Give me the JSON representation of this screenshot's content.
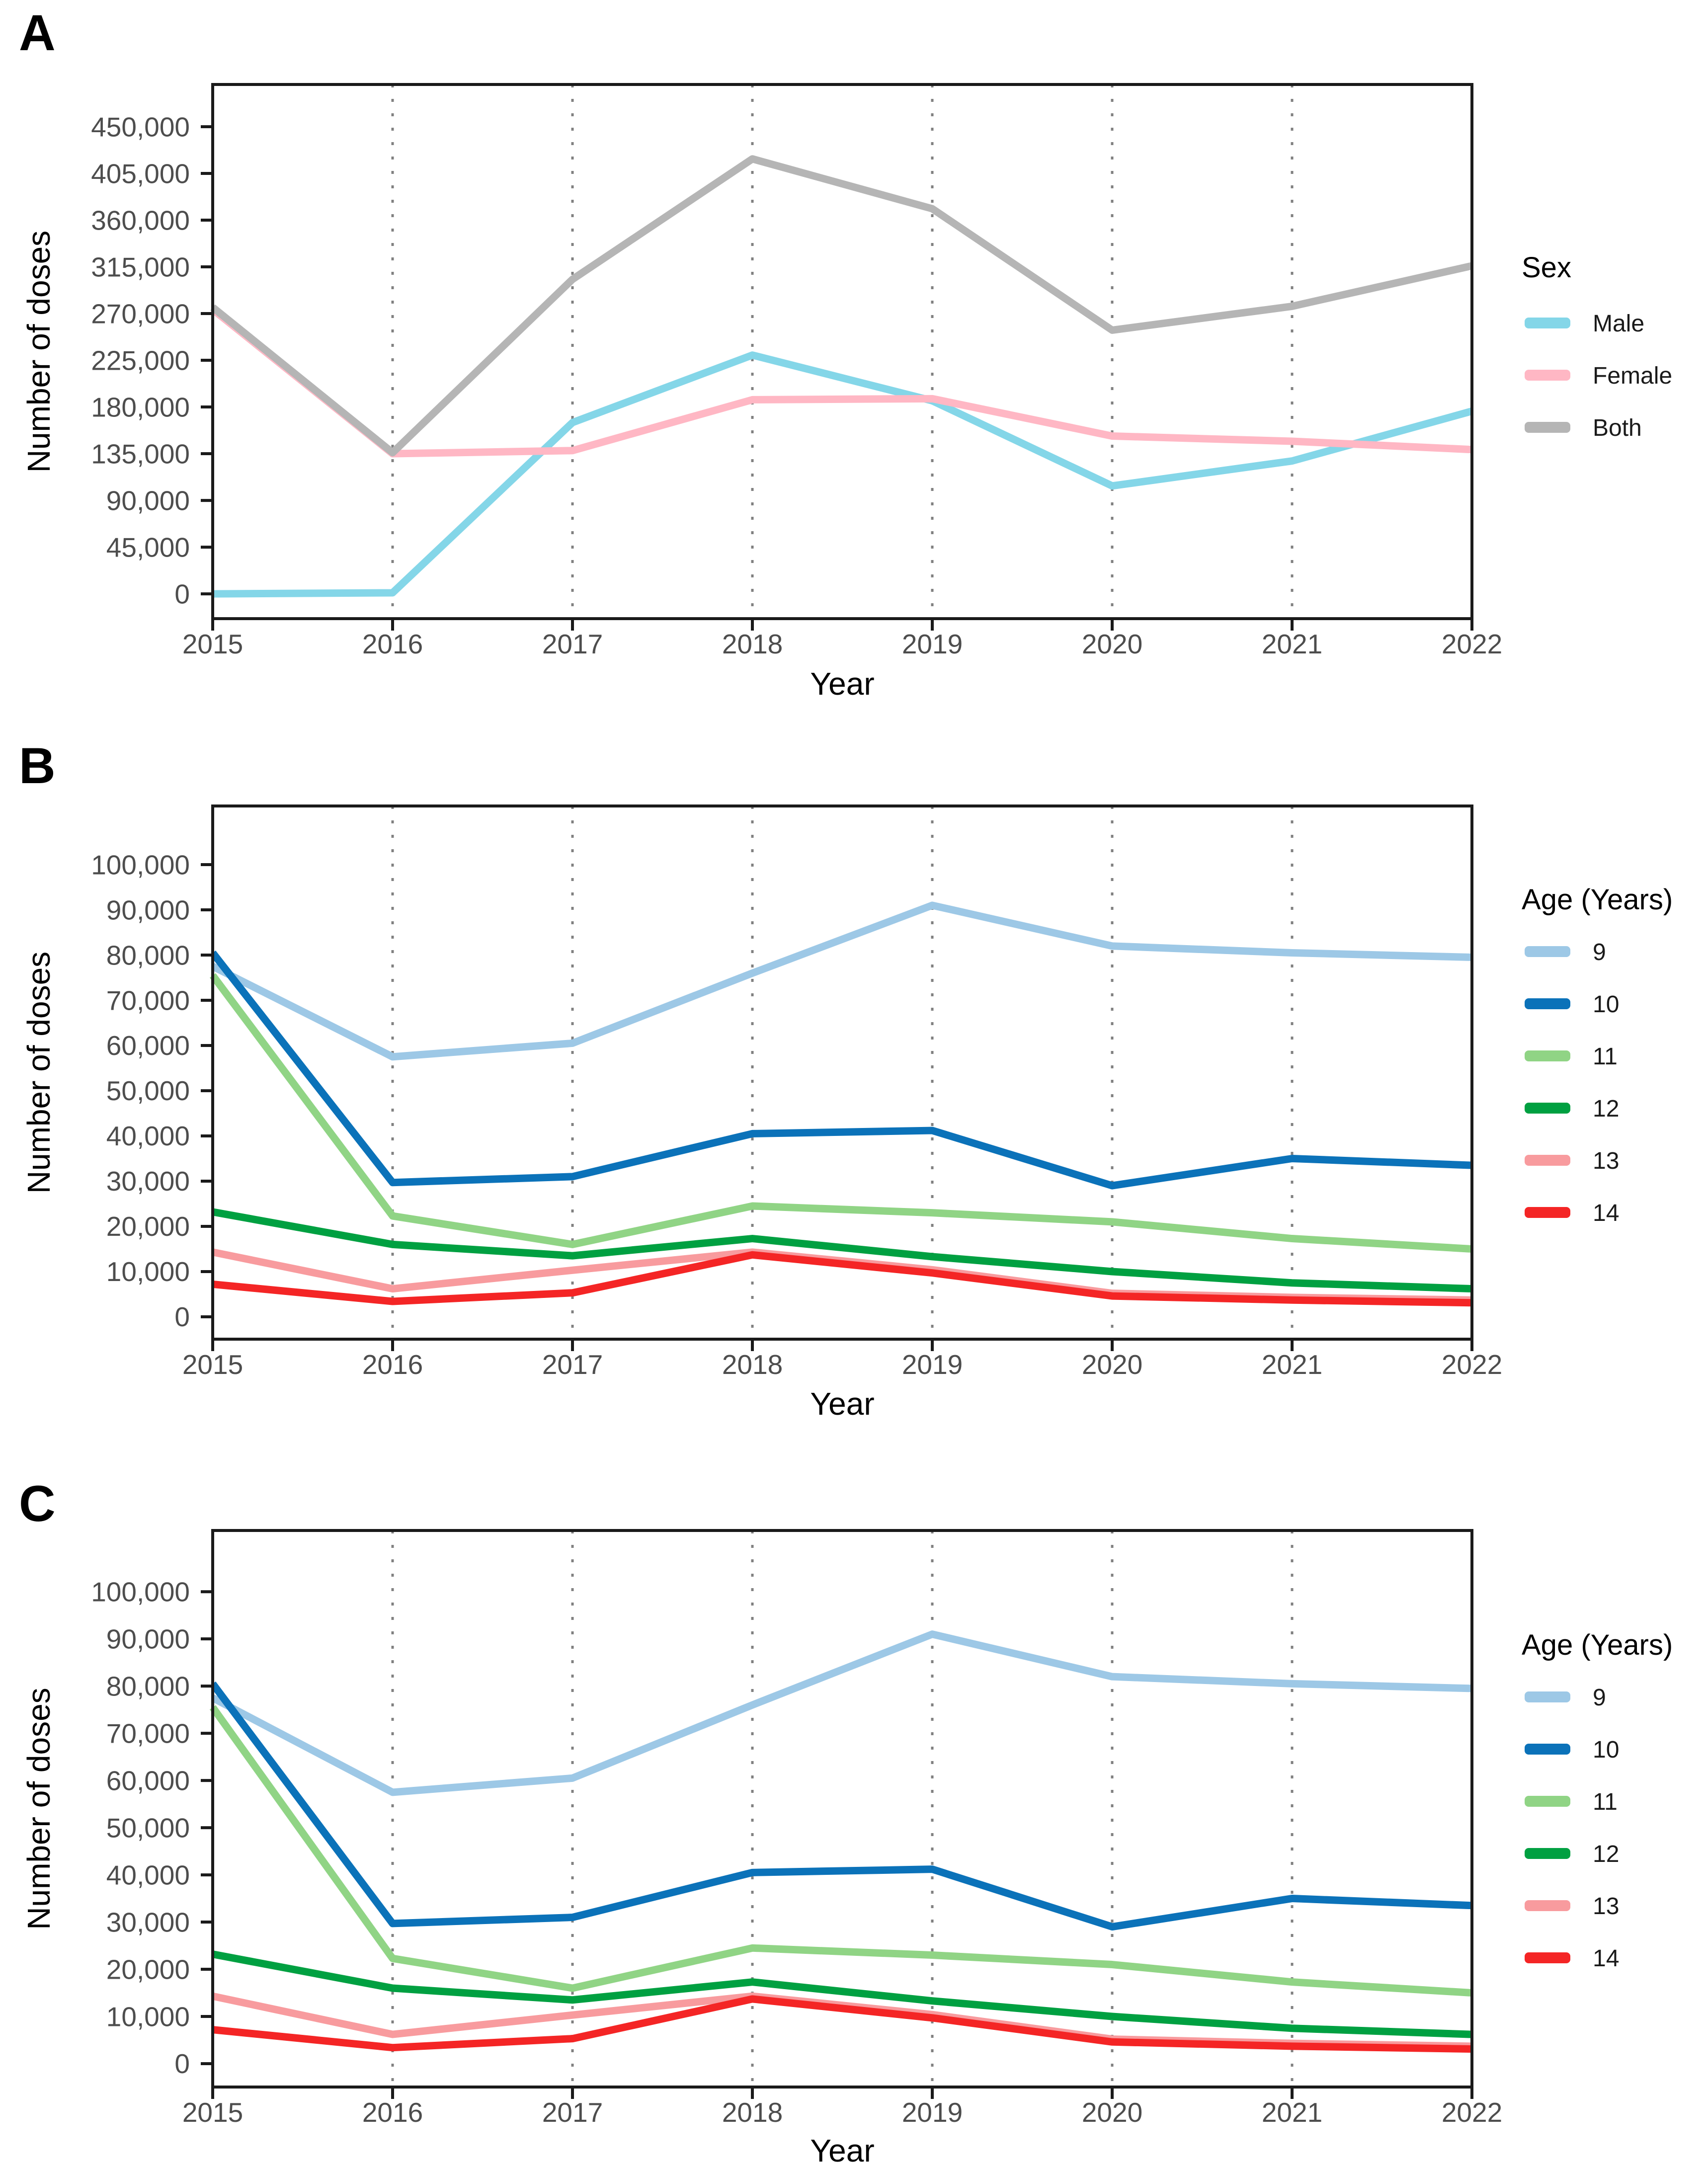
{
  "figure": {
    "background": "#ffffff",
    "axis_color": "#1a1a1a",
    "tick_label_color": "#4d4d4d",
    "grid_color": "#808080"
  },
  "chart_data": [
    {
      "panel_label": "A",
      "type": "line",
      "xlabel": "Year",
      "ylabel": "Number of doses",
      "x": [
        2015,
        2016,
        2017,
        2018,
        2019,
        2020,
        2021,
        2022
      ],
      "xlim": [
        2015,
        2022
      ],
      "ylim": [
        -23900,
        490700
      ],
      "yticks": [
        0,
        45000,
        90000,
        135000,
        180000,
        225000,
        270000,
        315000,
        360000,
        405000,
        450000
      ],
      "grid_years": [
        2016,
        2017,
        2018,
        2019,
        2020,
        2021,
        2022
      ],
      "grid_style": "dotted",
      "legend_title": "Sex",
      "legend_position": "right",
      "series": [
        {
          "name": "Male",
          "color": "#84D6E8",
          "values": [
            0,
            1000,
            165000,
            230000,
            186000,
            104000,
            128000,
            176000
          ]
        },
        {
          "name": "Female",
          "color": "#FFB7C4",
          "values": [
            274000,
            135000,
            138000,
            187000,
            188000,
            152000,
            147000,
            139000
          ]
        },
        {
          "name": "Both",
          "color": "#B5B5B5",
          "values": [
            276000,
            136000,
            303000,
            419000,
            371000,
            254000,
            277000,
            316000
          ]
        }
      ]
    },
    {
      "panel_label": "B",
      "type": "line",
      "xlabel": "Year",
      "ylabel": "Number of doses",
      "x": [
        2015,
        2016,
        2017,
        2018,
        2019,
        2020,
        2021,
        2022
      ],
      "xlim": [
        2015,
        2022
      ],
      "ylim": [
        -4950,
        112970
      ],
      "yticks": [
        0,
        10000,
        20000,
        30000,
        40000,
        50000,
        60000,
        70000,
        80000,
        90000,
        100000
      ],
      "grid_years": [
        2016,
        2017,
        2018,
        2019,
        2020,
        2021,
        2022
      ],
      "grid_style": "dotted",
      "legend_title": "Age (Years)",
      "legend_position": "right",
      "series": [
        {
          "name": "9",
          "color": "#9DC8E6",
          "values": [
            77500,
            57500,
            60500,
            76000,
            91000,
            82000,
            80500,
            79500
          ]
        },
        {
          "name": "10",
          "color": "#0B72B9",
          "values": [
            80500,
            29700,
            31000,
            40500,
            41200,
            29000,
            35000,
            33500
          ]
        },
        {
          "name": "11",
          "color": "#90D485",
          "values": [
            75500,
            22300,
            16000,
            24500,
            23000,
            21000,
            17300,
            15000
          ]
        },
        {
          "name": "12",
          "color": "#00A041",
          "values": [
            23200,
            16000,
            13500,
            17300,
            13300,
            10000,
            7500,
            6200
          ]
        },
        {
          "name": "13",
          "color": "#F89B9E",
          "values": [
            14300,
            6200,
            10300,
            14300,
            10400,
            5200,
            4300,
            3700
          ]
        },
        {
          "name": "14",
          "color": "#F42525",
          "values": [
            7200,
            3400,
            5300,
            13700,
            9700,
            4600,
            3700,
            3100
          ]
        }
      ]
    },
    {
      "panel_label": "C",
      "type": "line",
      "xlabel": "Year",
      "ylabel": "Number of doses",
      "x": [
        2015,
        2016,
        2017,
        2018,
        2019,
        2020,
        2021,
        2022
      ],
      "xlim": [
        2015,
        2022
      ],
      "ylim": [
        -4950,
        112970
      ],
      "yticks": [
        0,
        10000,
        20000,
        30000,
        40000,
        50000,
        60000,
        70000,
        80000,
        90000,
        100000
      ],
      "grid_years": [
        2016,
        2017,
        2018,
        2019,
        2020,
        2021,
        2022
      ],
      "grid_style": "dotted",
      "legend_title": "Age (Years)",
      "legend_position": "right",
      "series": [
        {
          "name": "9",
          "color": "#9DC8E6",
          "values": [
            77500,
            57500,
            60500,
            76000,
            91000,
            82000,
            80500,
            79500
          ]
        },
        {
          "name": "10",
          "color": "#0B72B9",
          "values": [
            80500,
            29700,
            31000,
            40500,
            41200,
            29000,
            35000,
            33500
          ]
        },
        {
          "name": "11",
          "color": "#90D485",
          "values": [
            75500,
            22300,
            16000,
            24500,
            23000,
            21000,
            17300,
            15000
          ]
        },
        {
          "name": "12",
          "color": "#00A041",
          "values": [
            23200,
            16000,
            13500,
            17300,
            13300,
            10000,
            7500,
            6200
          ]
        },
        {
          "name": "13",
          "color": "#F89B9E",
          "values": [
            14300,
            6200,
            10300,
            14300,
            10400,
            5200,
            4300,
            3700
          ]
        },
        {
          "name": "14",
          "color": "#F42525",
          "values": [
            7200,
            3400,
            5300,
            13700,
            9700,
            4600,
            3700,
            3100
          ]
        }
      ]
    }
  ]
}
